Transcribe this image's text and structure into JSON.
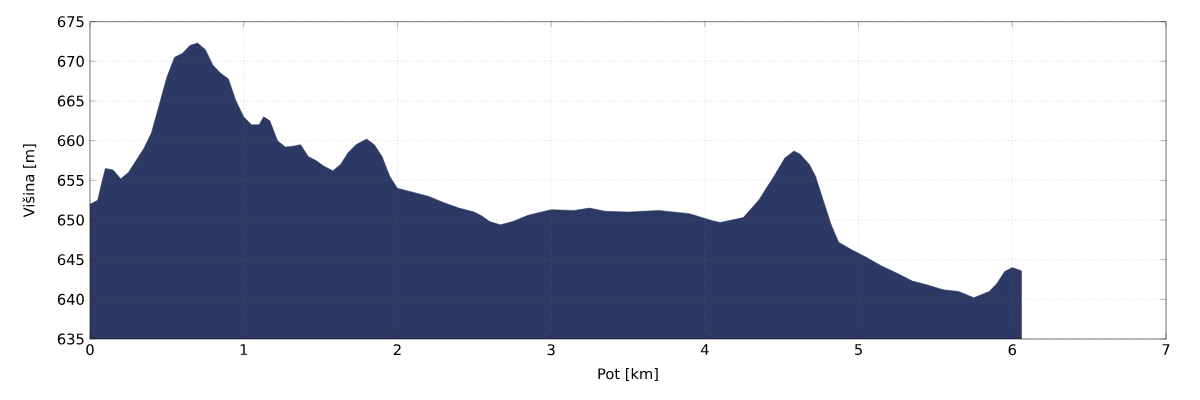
{
  "chart_data": {
    "type": "area",
    "xlabel": "Pot [km]",
    "ylabel": "Višina [m]",
    "color": "#2b3964",
    "x": [
      0,
      0.05,
      0.08,
      0.1,
      0.15,
      0.2,
      0.25,
      0.3,
      0.35,
      0.4,
      0.45,
      0.5,
      0.55,
      0.6,
      0.65,
      0.7,
      0.75,
      0.8,
      0.85,
      0.9,
      0.95,
      1.0,
      1.05,
      1.1,
      1.13,
      1.17,
      1.22,
      1.27,
      1.32,
      1.37,
      1.42,
      1.47,
      1.52,
      1.58,
      1.63,
      1.68,
      1.73,
      1.8,
      1.85,
      1.9,
      1.95,
      2.0,
      2.1,
      2.2,
      2.3,
      2.4,
      2.5,
      2.55,
      2.6,
      2.67,
      2.75,
      2.85,
      3.0,
      3.15,
      3.25,
      3.35,
      3.5,
      3.7,
      3.9,
      4.05,
      4.1,
      4.25,
      4.35,
      4.45,
      4.52,
      4.58,
      4.62,
      4.68,
      4.72,
      4.77,
      4.82,
      4.87,
      4.95,
      5.05,
      5.15,
      5.25,
      5.35,
      5.45,
      5.55,
      5.65,
      5.7,
      5.75,
      5.85,
      5.9,
      5.95,
      6.0,
      6.06
    ],
    "values": [
      652,
      652.5,
      655,
      656.5,
      656.3,
      655.2,
      656,
      657.5,
      659,
      661,
      664.5,
      668,
      670.5,
      671,
      672,
      672.3,
      671.5,
      669.5,
      668.5,
      667.8,
      665,
      663,
      662,
      662,
      663,
      662.5,
      660,
      659.2,
      659.3,
      659.5,
      658,
      657.5,
      656.8,
      656.2,
      657,
      658.5,
      659.5,
      660.2,
      659.5,
      658,
      655.5,
      654,
      653.5,
      653,
      652.2,
      651.5,
      651,
      650.5,
      649.8,
      649.4,
      649.8,
      650.6,
      651.3,
      651.2,
      651.5,
      651.1,
      651,
      651.2,
      650.8,
      649.9,
      649.7,
      650.3,
      652.5,
      655.5,
      657.8,
      658.7,
      658.3,
      657,
      655.5,
      652.5,
      649.5,
      647.2,
      646.3,
      645.3,
      644.2,
      643.3,
      642.3,
      641.8,
      641.2,
      641,
      640.6,
      640.2,
      641,
      642,
      643.5,
      644,
      643.6
    ],
    "xlim": [
      0,
      7
    ],
    "ylim": [
      635,
      675
    ],
    "xticks": [
      0,
      1,
      2,
      3,
      4,
      5,
      6,
      7
    ],
    "yticks": [
      635,
      640,
      645,
      650,
      655,
      660,
      665,
      670,
      675
    ],
    "grid": true
  }
}
